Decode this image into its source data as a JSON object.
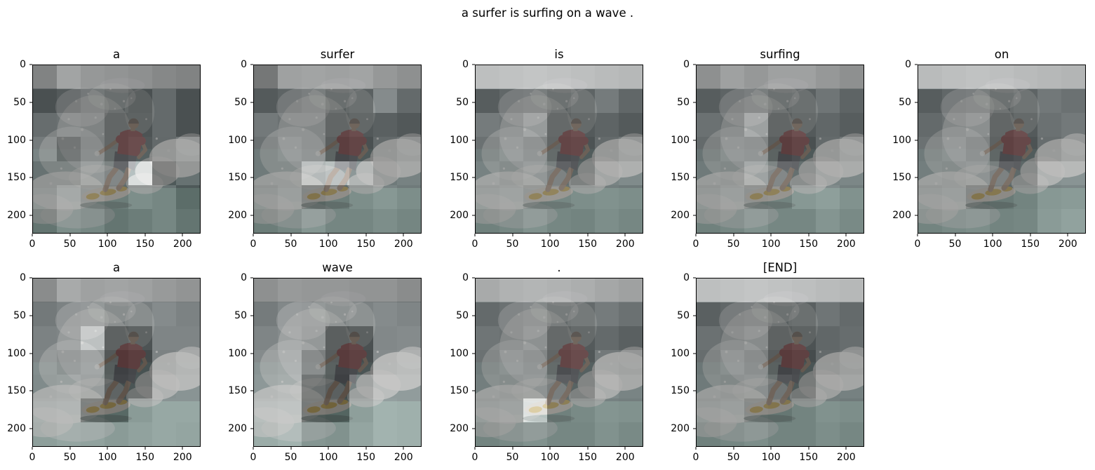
{
  "figure": {
    "suptitle": "a surfer is surfing on a wave ."
  },
  "scene": {
    "subject": "surfer in a red shirt crouching on a white surfboard with yellow accents, riding a breaking wave with white spray",
    "colors": {
      "sky": "#aaaeb0",
      "sea_dark": "#45585b",
      "sea_mid": "#527070",
      "sea_light": "#79a89f",
      "foam": "#e7e9e6",
      "shirt": "#8e383b",
      "shorts": "#4a525a",
      "skin": "#9a7d61",
      "hair": "#5d4f42",
      "board": "#ddd7c8",
      "board_accent": "#c9a12f"
    }
  },
  "chart_data": {
    "type": "heatmap",
    "title": "a surfer is surfing on a wave .",
    "description": "Per-word decoder attention maps (7x7 grid) overlaid on a 224x224 surfer image; one subplot per generated caption token",
    "x_ticks": [
      0,
      50,
      100,
      150,
      200
    ],
    "y_ticks": [
      0,
      50,
      100,
      150,
      200
    ],
    "extent": 224,
    "grid_size": 7,
    "overlay_alpha": 0.65,
    "rows": 2,
    "cols": 5,
    "subplots": [
      {
        "word": "a",
        "attention": [
          [
            0.42,
            0.62,
            0.55,
            0.52,
            0.5,
            0.45,
            0.42
          ],
          [
            0.3,
            0.36,
            0.42,
            0.36,
            0.3,
            0.46,
            0.3
          ],
          [
            0.48,
            0.5,
            0.48,
            0.3,
            0.32,
            0.46,
            0.3
          ],
          [
            0.56,
            0.32,
            0.45,
            0.3,
            0.35,
            0.45,
            0.52
          ],
          [
            0.45,
            0.45,
            0.56,
            0.45,
            0.93,
            0.3,
            0.45
          ],
          [
            0.45,
            0.56,
            0.45,
            0.4,
            0.5,
            0.46,
            0.3
          ],
          [
            0.35,
            0.5,
            0.46,
            0.35,
            0.4,
            0.46,
            0.35
          ]
        ]
      },
      {
        "word": "surfer",
        "attention": [
          [
            0.35,
            0.6,
            0.62,
            0.6,
            0.62,
            0.55,
            0.5
          ],
          [
            0.36,
            0.42,
            0.46,
            0.36,
            0.4,
            0.66,
            0.46
          ],
          [
            0.55,
            0.5,
            0.5,
            0.3,
            0.35,
            0.4,
            0.35
          ],
          [
            0.5,
            0.55,
            0.5,
            0.26,
            0.3,
            0.45,
            0.5
          ],
          [
            0.5,
            0.5,
            0.76,
            0.82,
            0.68,
            0.5,
            0.55
          ],
          [
            0.45,
            0.5,
            0.35,
            0.4,
            0.5,
            0.56,
            0.5
          ],
          [
            0.4,
            0.45,
            0.55,
            0.45,
            0.45,
            0.5,
            0.45
          ]
        ]
      },
      {
        "word": "is",
        "attention": [
          [
            0.78,
            0.8,
            0.82,
            0.8,
            0.78,
            0.76,
            0.74
          ],
          [
            0.38,
            0.44,
            0.46,
            0.38,
            0.42,
            0.56,
            0.44
          ],
          [
            0.56,
            0.52,
            0.62,
            0.32,
            0.36,
            0.42,
            0.36
          ],
          [
            0.5,
            0.56,
            0.5,
            0.3,
            0.32,
            0.46,
            0.52
          ],
          [
            0.55,
            0.5,
            0.55,
            0.42,
            0.36,
            0.56,
            0.6
          ],
          [
            0.5,
            0.52,
            0.45,
            0.46,
            0.5,
            0.52,
            0.5
          ],
          [
            0.42,
            0.46,
            0.52,
            0.46,
            0.44,
            0.5,
            0.46
          ]
        ]
      },
      {
        "word": "surfing",
        "attention": [
          [
            0.5,
            0.6,
            0.55,
            0.6,
            0.6,
            0.55,
            0.5
          ],
          [
            0.38,
            0.42,
            0.46,
            0.38,
            0.4,
            0.52,
            0.42
          ],
          [
            0.5,
            0.48,
            0.66,
            0.3,
            0.36,
            0.44,
            0.38
          ],
          [
            0.46,
            0.52,
            0.5,
            0.25,
            0.3,
            0.46,
            0.52
          ],
          [
            0.5,
            0.48,
            0.62,
            0.46,
            0.44,
            0.56,
            0.58
          ],
          [
            0.46,
            0.5,
            0.42,
            0.44,
            0.56,
            0.6,
            0.52
          ],
          [
            0.42,
            0.46,
            0.52,
            0.46,
            0.46,
            0.54,
            0.48
          ]
        ]
      },
      {
        "word": "on",
        "attention": [
          [
            0.76,
            0.78,
            0.8,
            0.78,
            0.76,
            0.74,
            0.72
          ],
          [
            0.38,
            0.44,
            0.46,
            0.38,
            0.42,
            0.54,
            0.5
          ],
          [
            0.46,
            0.5,
            0.55,
            0.3,
            0.36,
            0.5,
            0.55
          ],
          [
            0.5,
            0.54,
            0.48,
            0.28,
            0.32,
            0.48,
            0.54
          ],
          [
            0.52,
            0.5,
            0.52,
            0.42,
            0.4,
            0.64,
            0.66
          ],
          [
            0.48,
            0.5,
            0.36,
            0.38,
            0.44,
            0.56,
            0.58
          ],
          [
            0.44,
            0.48,
            0.5,
            0.44,
            0.46,
            0.58,
            0.62
          ]
        ]
      },
      {
        "word": "a",
        "attention": [
          [
            0.48,
            0.66,
            0.6,
            0.62,
            0.6,
            0.56,
            0.52
          ],
          [
            0.55,
            0.6,
            0.62,
            0.55,
            0.58,
            0.66,
            0.6
          ],
          [
            0.6,
            0.62,
            0.85,
            0.28,
            0.32,
            0.62,
            0.62
          ],
          [
            0.62,
            0.55,
            0.6,
            0.22,
            0.26,
            0.6,
            0.64
          ],
          [
            0.6,
            0.62,
            0.58,
            0.24,
            0.28,
            0.64,
            0.66
          ],
          [
            0.62,
            0.64,
            0.32,
            0.28,
            0.58,
            0.66,
            0.66
          ],
          [
            0.6,
            0.64,
            0.62,
            0.58,
            0.62,
            0.66,
            0.64
          ]
        ]
      },
      {
        "word": "wave",
        "attention": [
          [
            0.5,
            0.56,
            0.54,
            0.54,
            0.52,
            0.52,
            0.48
          ],
          [
            0.56,
            0.64,
            0.62,
            0.58,
            0.6,
            0.66,
            0.62
          ],
          [
            0.62,
            0.66,
            0.6,
            0.26,
            0.3,
            0.64,
            0.66
          ],
          [
            0.66,
            0.68,
            0.45,
            0.24,
            0.28,
            0.66,
            0.68
          ],
          [
            0.68,
            0.7,
            0.3,
            0.22,
            0.55,
            0.7,
            0.7
          ],
          [
            0.7,
            0.72,
            0.28,
            0.25,
            0.6,
            0.72,
            0.7
          ],
          [
            0.68,
            0.72,
            0.55,
            0.52,
            0.64,
            0.72,
            0.7
          ]
        ]
      },
      {
        "word": ".",
        "attention": [
          [
            0.66,
            0.7,
            0.72,
            0.7,
            0.68,
            0.64,
            0.6
          ],
          [
            0.46,
            0.5,
            0.52,
            0.44,
            0.46,
            0.56,
            0.5
          ],
          [
            0.52,
            0.5,
            0.56,
            0.32,
            0.36,
            0.46,
            0.4
          ],
          [
            0.5,
            0.54,
            0.5,
            0.3,
            0.34,
            0.55,
            0.52
          ],
          [
            0.52,
            0.5,
            0.52,
            0.4,
            0.36,
            0.6,
            0.56
          ],
          [
            0.5,
            0.52,
            0.9,
            0.42,
            0.48,
            0.54,
            0.52
          ],
          [
            0.44,
            0.48,
            0.52,
            0.46,
            0.46,
            0.52,
            0.48
          ]
        ]
      },
      {
        "word": "[END]",
        "attention": [
          [
            0.78,
            0.8,
            0.82,
            0.8,
            0.78,
            0.76,
            0.74
          ],
          [
            0.4,
            0.44,
            0.46,
            0.38,
            0.4,
            0.52,
            0.46
          ],
          [
            0.5,
            0.48,
            0.52,
            0.28,
            0.32,
            0.44,
            0.48
          ],
          [
            0.48,
            0.52,
            0.46,
            0.24,
            0.28,
            0.46,
            0.5
          ],
          [
            0.5,
            0.48,
            0.5,
            0.34,
            0.3,
            0.52,
            0.54
          ],
          [
            0.48,
            0.5,
            0.38,
            0.36,
            0.44,
            0.52,
            0.5
          ],
          [
            0.42,
            0.46,
            0.5,
            0.44,
            0.44,
            0.5,
            0.46
          ]
        ]
      }
    ]
  }
}
